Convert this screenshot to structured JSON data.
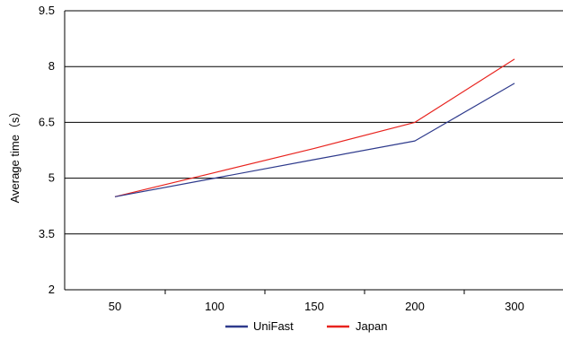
{
  "chart_data": {
    "type": "line",
    "title": "",
    "xlabel": "",
    "ylabel": "Average time（s）",
    "categories": [
      "50",
      "100",
      "150",
      "200",
      "300"
    ],
    "ylim": [
      2,
      9.5
    ],
    "yticks": [
      "2",
      "3.5",
      "5",
      "6.5",
      "8",
      "9.5"
    ],
    "grid": true,
    "legend_position": "bottom-center",
    "series": [
      {
        "name": "UniFast",
        "color": "#2e3a8c",
        "values": [
          4.5,
          5.0,
          5.5,
          6.0,
          7.55
        ]
      },
      {
        "name": "Japan",
        "color": "#e8231e",
        "values": [
          4.5,
          5.15,
          5.8,
          6.5,
          8.2
        ]
      }
    ]
  }
}
